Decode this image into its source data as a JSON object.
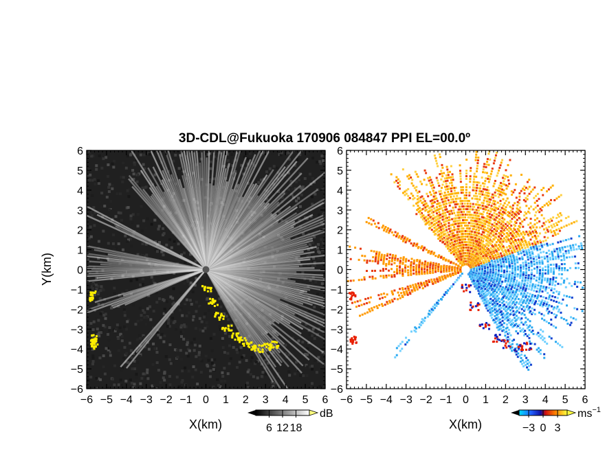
{
  "title": "3D-CDL@Fukuoka 170906 084847 PPI EL=00.0º",
  "chart_data": [
    {
      "type": "heatmap",
      "panel": "reflectivity",
      "xlabel": "X(km)",
      "ylabel": "Y(km)",
      "xlim": [
        -6,
        6
      ],
      "ylim": [
        -6,
        6
      ],
      "x_ticks": [
        "−6",
        "−5",
        "−4",
        "−3",
        "−2",
        "−1",
        "0",
        "1",
        "2",
        "3",
        "4",
        "5",
        "6"
      ],
      "y_ticks": [
        "−6",
        "−5",
        "−4",
        "−3",
        "−2",
        "−1",
        "0",
        "1",
        "2",
        "3",
        "4",
        "5",
        "6"
      ],
      "colorbar": {
        "unit": "dB",
        "ticks": [
          "6",
          "12",
          "18"
        ],
        "range": [
          0,
          24
        ]
      },
      "colors": {
        "background": "#1e1e1e",
        "echo": "#e6e6e6",
        "clutter": "#ffee00"
      }
    },
    {
      "type": "heatmap",
      "panel": "radial-velocity",
      "xlabel": "X(km)",
      "xlim": [
        -6,
        6
      ],
      "ylim": [
        -6,
        6
      ],
      "x_ticks": [
        "−6",
        "−5",
        "−4",
        "−3",
        "−2",
        "−1",
        "0",
        "1",
        "2",
        "3",
        "4",
        "5",
        "6"
      ],
      "y_ticks": [
        "−6",
        "−5",
        "−4",
        "−3",
        "−2",
        "−1",
        "0",
        "1",
        "2",
        "3",
        "4",
        "5",
        "6"
      ],
      "colorbar": {
        "unit": "ms",
        "unit_exp": "−1",
        "ticks": [
          "−3",
          "0",
          "3"
        ],
        "range": [
          -5,
          5
        ]
      },
      "colors": {
        "toward": "#2aa8f0",
        "away": "#ffb000",
        "folded_neg": "#1020c0",
        "folded_pos": "#e82000"
      }
    }
  ]
}
